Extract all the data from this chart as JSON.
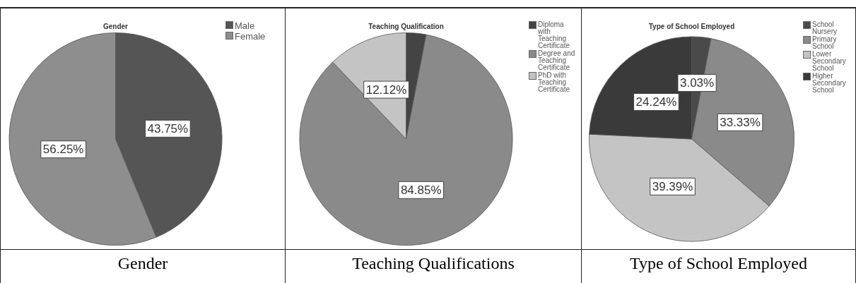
{
  "chart_data": [
    {
      "type": "pie",
      "title": "Gender",
      "categories": [
        "Male",
        "Female"
      ],
      "values": [
        43.75,
        56.25
      ],
      "colors": [
        "#555555",
        "#8e8e8e"
      ],
      "value_labels": [
        "43.75%",
        "56.25%"
      ],
      "legend": "top right",
      "annotations": [
        "Gender"
      ]
    },
    {
      "type": "pie",
      "title": "Teaching Qualification",
      "categories": [
        "Diploma with Teaching Certificate",
        "Degree and Teaching Certificate",
        "PhD with Teaching Certificate"
      ],
      "values": [
        3.03,
        84.85,
        12.12
      ],
      "colors": [
        "#444444",
        "#8a8a8a",
        "#c4c4c4"
      ],
      "value_labels": [
        null,
        "84.85%",
        "12.12%"
      ],
      "legend": "top right",
      "annotations": [
        "Teaching Qualifications"
      ]
    },
    {
      "type": "pie",
      "title": "Type of School Employed",
      "categories": [
        "School Nursery",
        "Primary School",
        "Lower Secondary School",
        "Higher Secondary School"
      ],
      "values": [
        3.03,
        33.33,
        39.39,
        24.24
      ],
      "colors": [
        "#4a4a4a",
        "#8a8a8a",
        "#c4c4c4",
        "#3a3a3a"
      ],
      "value_labels": [
        "3.03%",
        "33.33%",
        "39.39%",
        "24.24%"
      ],
      "legend": "top right",
      "annotations": [
        "Type of School Employed"
      ]
    }
  ]
}
